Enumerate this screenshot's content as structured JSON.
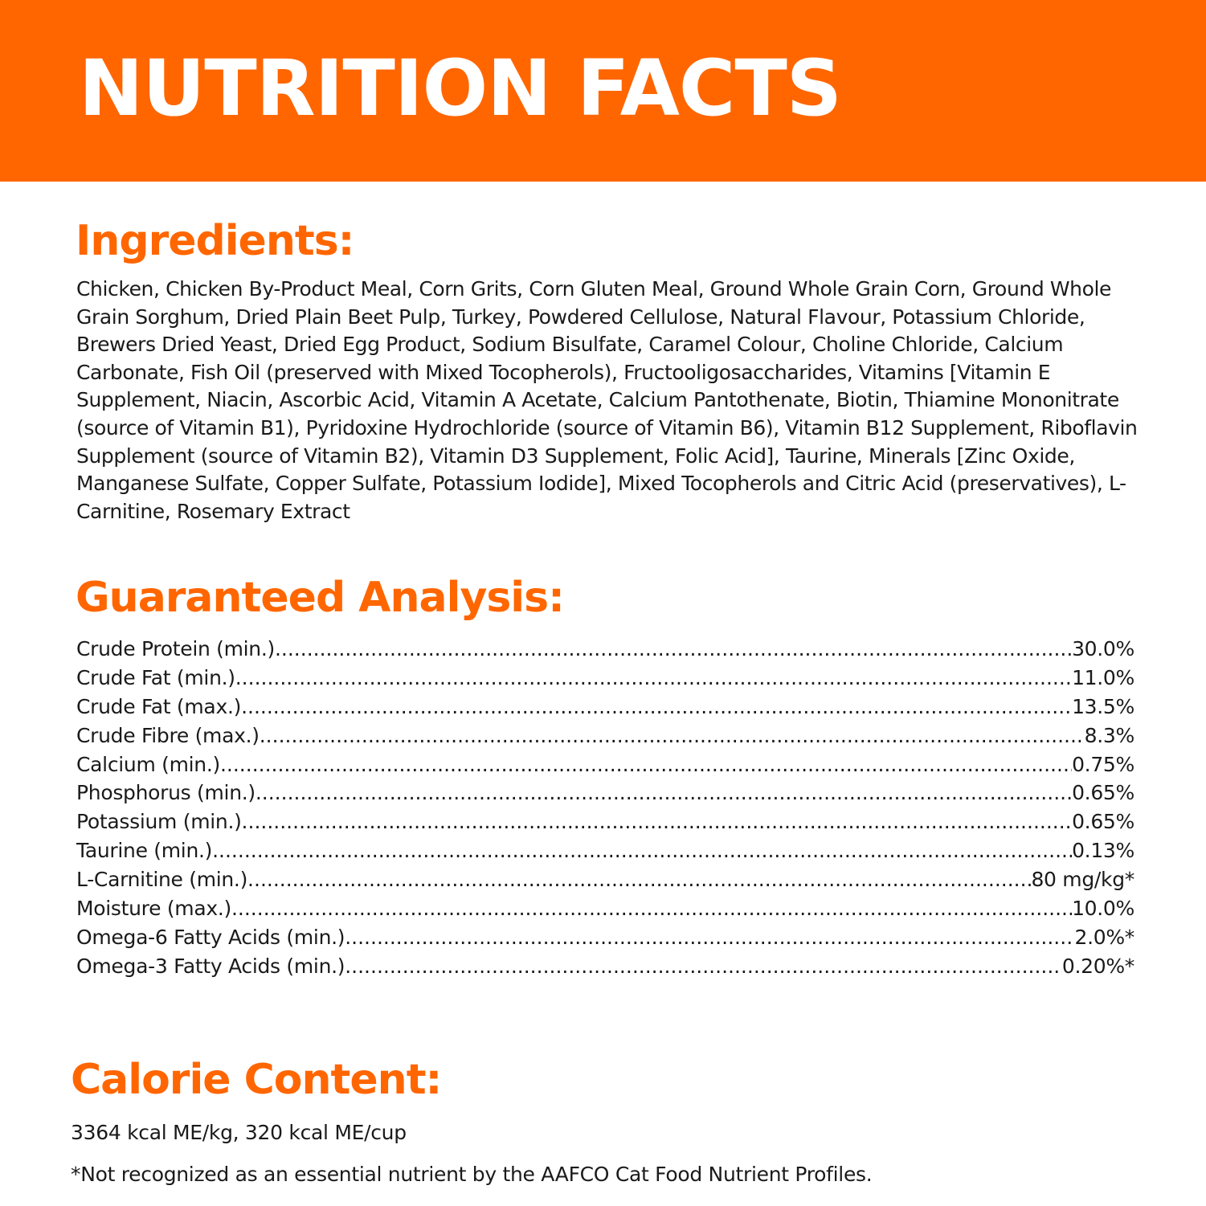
{
  "banner": {
    "title": "NUTRITION FACTS",
    "color": "#ff6600"
  },
  "ingredients": {
    "heading": "Ingredients:",
    "text": "Chicken, Chicken By-Product Meal, Corn Grits, Corn Gluten Meal, Ground Whole Grain Corn, Ground Whole Grain Sorghum, Dried Plain Beet Pulp, Turkey, Powdered Cellulose, Natural Flavour, Potassium Chloride, Brewers Dried Yeast, Dried Egg Product, Sodium Bisulfate, Caramel Colour, Choline Chloride, Calcium Carbonate, Fish Oil (preserved with Mixed Tocopherols), Fructooligosaccharides, Vitamins [Vitamin E Supplement, Niacin, Ascorbic Acid, Vitamin A Acetate, Calcium Pantothenate, Biotin, Thiamine Mononitrate (source of Vitamin B1), Pyridoxine Hydrochloride (source of Vitamin B6), Vitamin B12 Supplement, Riboflavin Supplement (source of Vitamin B2), Vitamin D3 Supplement, Folic Acid], Taurine, Minerals [Zinc Oxide, Manganese Sulfate, Copper Sulfate, Potassium Iodide], Mixed Tocopherols and Citric Acid (preservatives), L-Carnitine, Rosemary Extract"
  },
  "analysis": {
    "heading": "Guaranteed Analysis:",
    "rows": [
      {
        "label": "Crude Protein (min.)",
        "value": "30.0%"
      },
      {
        "label": "Crude Fat (min.)",
        "value": "11.0%"
      },
      {
        "label": "Crude Fat (max.)",
        "value": "13.5%"
      },
      {
        "label": "Crude Fibre (max.)",
        "value": "8.3%"
      },
      {
        "label": "Calcium (min.)",
        "value": "0.75%"
      },
      {
        "label": "Phosphorus (min.)",
        "value": "0.65%"
      },
      {
        "label": "Potassium (min.)",
        "value": "0.65%"
      },
      {
        "label": "Taurine (min.)",
        "value": "0.13%"
      },
      {
        "label": "L-Carnitine (min.)",
        "value": "80 mg/kg*"
      },
      {
        "label": "Moisture (max.)",
        "value": "10.0%"
      },
      {
        "label": "Omega-6 Fatty Acids (min.)",
        "value": "2.0%*"
      },
      {
        "label": "Omega-3 Fatty Acids (min.)",
        "value": "0.20%*"
      }
    ]
  },
  "calorie": {
    "heading": "Calorie Content:",
    "text": "3364 kcal ME/kg, 320 kcal ME/cup"
  },
  "footnote": "*Not recognized as an essential nutrient by the AAFCO Cat Food Nutrient Profiles."
}
